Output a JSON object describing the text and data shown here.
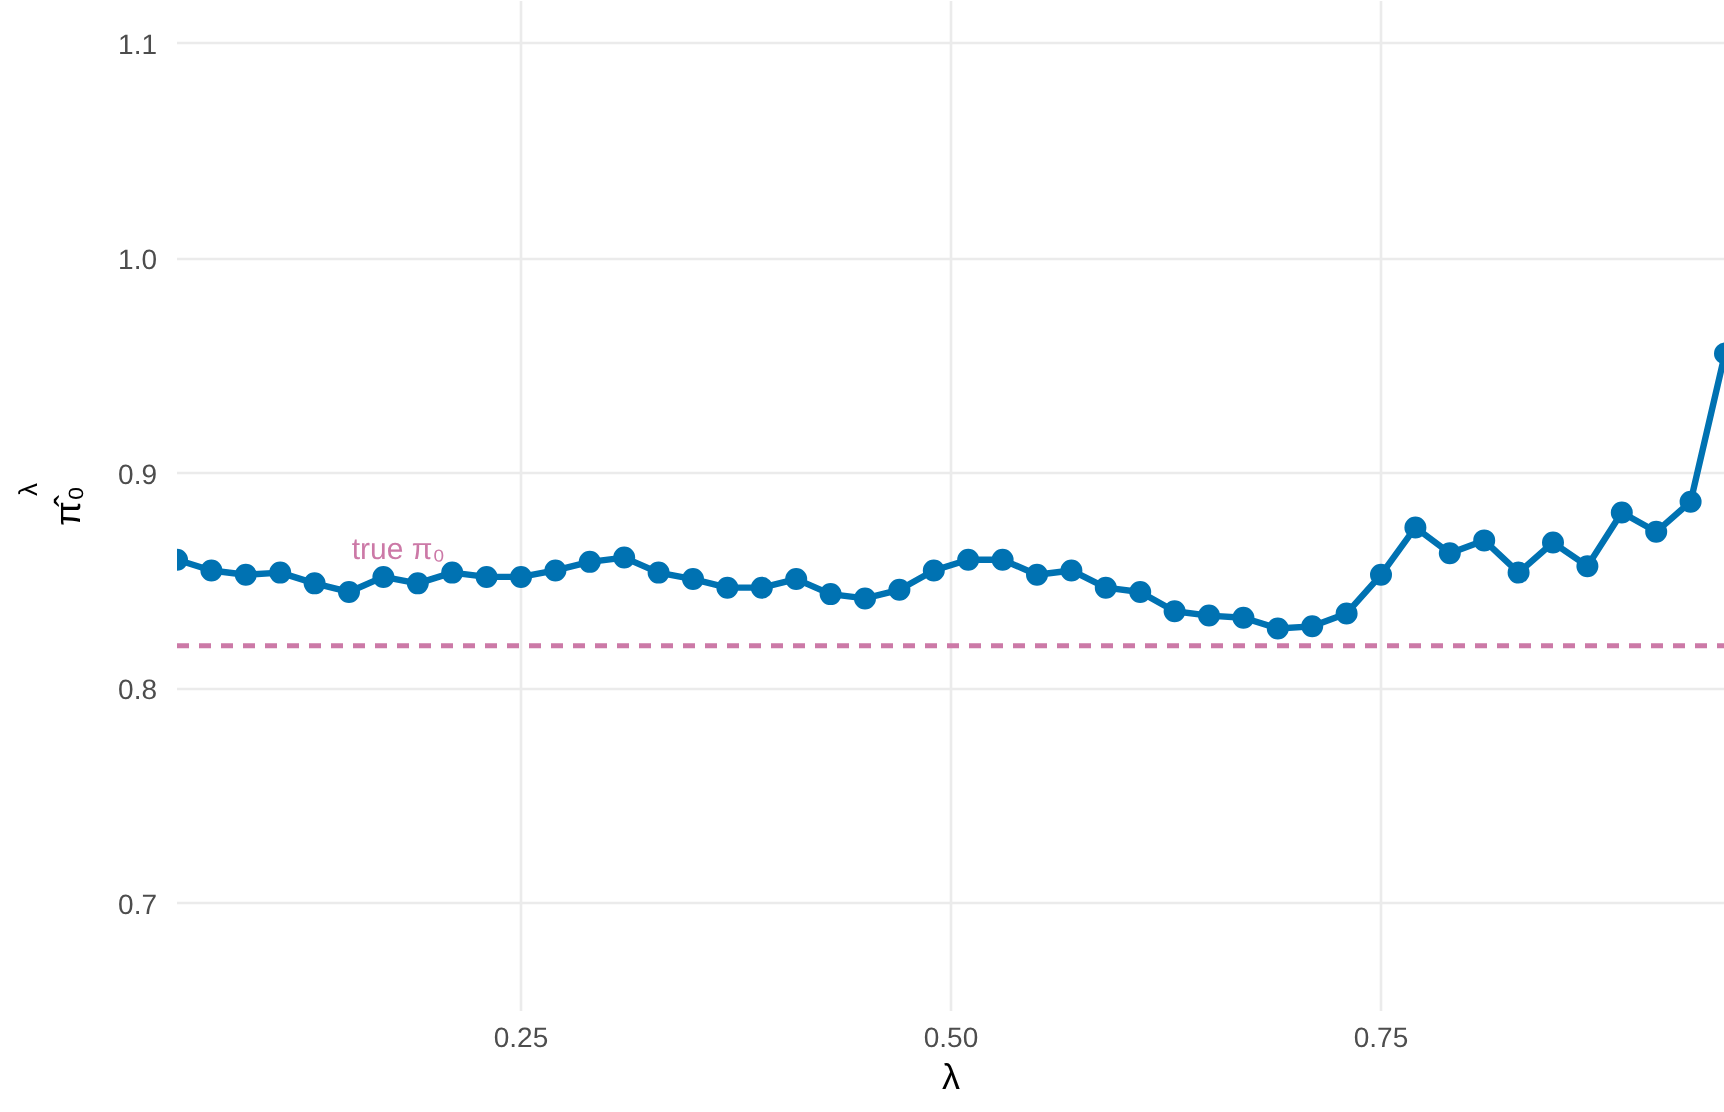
{
  "chart_data": {
    "type": "line",
    "xlabel": "λ",
    "ylabel": "π̂₀$^{λ}$",
    "x": [
      0.05,
      0.07,
      0.09,
      0.11,
      0.13,
      0.15,
      0.17,
      0.19,
      0.21,
      0.23,
      0.25,
      0.27,
      0.29,
      0.31,
      0.33,
      0.35,
      0.37,
      0.39,
      0.41,
      0.43,
      0.45,
      0.47,
      0.49,
      0.51,
      0.53,
      0.55,
      0.57,
      0.59,
      0.61,
      0.63,
      0.65,
      0.67,
      0.69,
      0.71,
      0.73,
      0.75,
      0.77,
      0.79,
      0.81,
      0.83,
      0.85,
      0.87,
      0.89,
      0.91,
      0.93,
      0.95
    ],
    "series": [
      {
        "color": "#0072b2",
        "values": [
          0.86,
          0.855,
          0.853,
          0.854,
          0.849,
          0.845,
          0.852,
          0.849,
          0.854,
          0.852,
          0.852,
          0.855,
          0.859,
          0.861,
          0.854,
          0.851,
          0.847,
          0.847,
          0.851,
          0.844,
          0.842,
          0.846,
          0.855,
          0.86,
          0.86,
          0.853,
          0.855,
          0.847,
          0.845,
          0.836,
          0.834,
          0.833,
          0.828,
          0.829,
          0.835,
          0.853,
          0.875,
          0.863,
          0.869,
          0.854,
          0.868,
          0.857,
          0.882,
          0.873,
          0.887,
          0.956
        ]
      }
    ],
    "xlim": [
      0.05,
      0.95
    ],
    "ylim": [
      0.65,
      1.12
    ],
    "xticks": [
      0.25,
      {
        "value": 0.5,
        "label": "0.50"
      },
      0.75
    ],
    "yticks": [
      0.7,
      0.8,
      0.9,
      {
        "value": 1,
        "label": "1.0"
      },
      1.1
    ],
    "grid": true,
    "marker": "circle",
    "line_style": "solid",
    "ref_lines": [
      {
        "axis": "y",
        "value": 0.82,
        "label": "true π₀",
        "color": "#cc79a7",
        "line_style": "dashed"
      }
    ]
  }
}
